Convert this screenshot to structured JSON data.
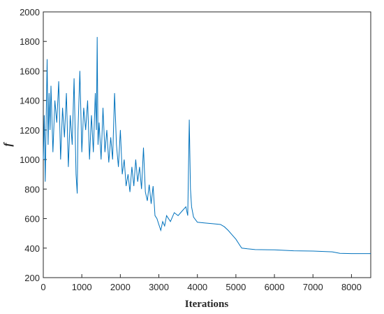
{
  "chart_data": {
    "type": "line",
    "xlabel": "Iterations",
    "ylabel": "f",
    "x": [
      0,
      25,
      50,
      75,
      100,
      125,
      150,
      175,
      200,
      250,
      300,
      350,
      400,
      450,
      500,
      550,
      600,
      650,
      700,
      750,
      800,
      850,
      880,
      900,
      950,
      1000,
      1050,
      1100,
      1150,
      1200,
      1250,
      1300,
      1350,
      1380,
      1400,
      1420,
      1450,
      1500,
      1550,
      1600,
      1650,
      1700,
      1750,
      1800,
      1850,
      1900,
      1950,
      2000,
      2050,
      2100,
      2150,
      2200,
      2250,
      2300,
      2350,
      2400,
      2450,
      2500,
      2550,
      2600,
      2650,
      2700,
      2750,
      2800,
      2850,
      2900,
      2950,
      3000,
      3050,
      3100,
      3150,
      3200,
      3300,
      3400,
      3500,
      3600,
      3700,
      3750,
      3790,
      3820,
      3850,
      3900,
      4000,
      4200,
      4400,
      4600,
      4700,
      4800,
      4900,
      5000,
      5100,
      5150,
      5300,
      5500,
      6000,
      6500,
      7000,
      7500,
      7700,
      8000,
      8500
    ],
    "series": [
      {
        "name": "f",
        "color": "#0072bd",
        "values": [
          1000,
          1300,
          850,
          1250,
          1680,
          1100,
          1450,
          1200,
          1500,
          1050,
          1400,
          1250,
          1530,
          1000,
          1350,
          1150,
          1450,
          950,
          1300,
          1100,
          1550,
          900,
          770,
          1200,
          1600,
          1050,
          1350,
          1200,
          1400,
          1000,
          1300,
          1050,
          1450,
          1200,
          1830,
          1100,
          1250,
          1000,
          1350,
          1050,
          1200,
          980,
          1150,
          1000,
          1450,
          1100,
          950,
          1200,
          900,
          1000,
          820,
          900,
          780,
          950,
          820,
          1000,
          850,
          950,
          800,
          1080,
          780,
          720,
          830,
          700,
          820,
          620,
          600,
          560,
          520,
          580,
          550,
          620,
          580,
          640,
          620,
          650,
          680,
          620,
          1270,
          800,
          680,
          610,
          575,
          570,
          565,
          560,
          545,
          520,
          490,
          460,
          420,
          400,
          395,
          390,
          388,
          382,
          380,
          375,
          365,
          363,
          363
        ]
      }
    ],
    "xlim": [
      0,
      8500
    ],
    "xticks": [
      0,
      1000,
      2000,
      3000,
      4000,
      5000,
      6000,
      7000,
      8000
    ],
    "ylim": [
      200,
      2000
    ],
    "yticks": [
      200,
      400,
      600,
      800,
      1000,
      1200,
      1400,
      1600,
      1800,
      2000
    ]
  }
}
